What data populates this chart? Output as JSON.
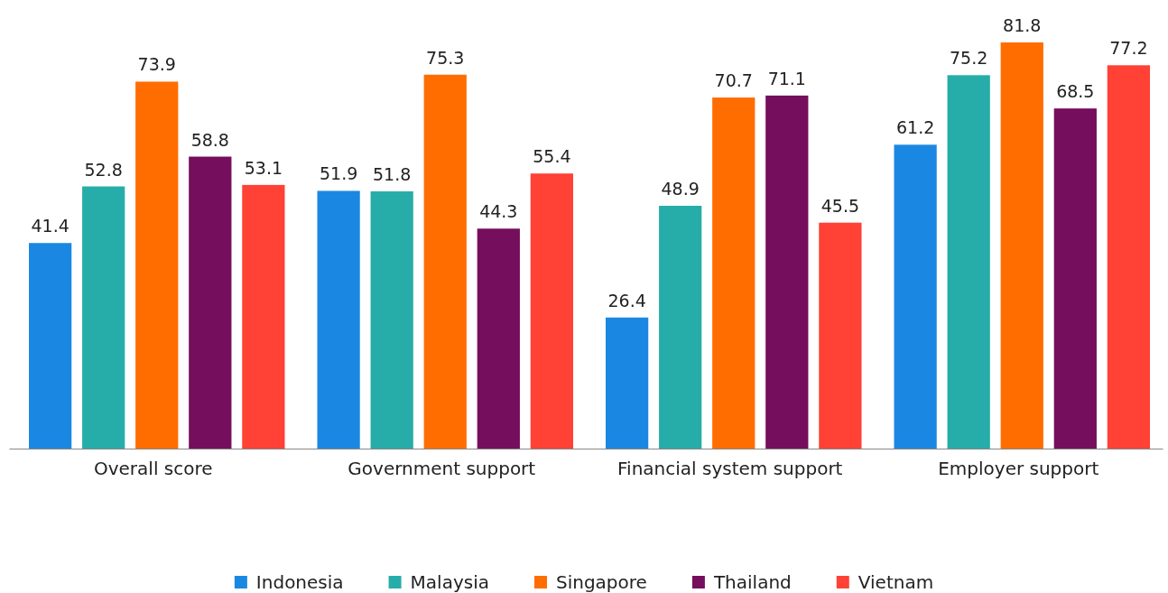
{
  "chart_data": {
    "type": "bar",
    "categories": [
      "Overall score",
      "Government support",
      "Financial system support",
      "Employer support"
    ],
    "series": [
      {
        "name": "Indonesia",
        "color": "#1a88e3",
        "values": [
          41.4,
          51.9,
          26.4,
          61.2
        ]
      },
      {
        "name": "Malaysia",
        "color": "#26ada9",
        "values": [
          52.8,
          51.8,
          48.9,
          75.2
        ]
      },
      {
        "name": "Singapore",
        "color": "#ff6d00",
        "values": [
          73.9,
          75.3,
          70.7,
          81.8
        ]
      },
      {
        "name": "Thailand",
        "color": "#750e5c",
        "values": [
          58.8,
          44.3,
          71.1,
          68.5
        ]
      },
      {
        "name": "Vietnam",
        "color": "#ff4136",
        "values": [
          53.1,
          55.4,
          45.5,
          77.2
        ]
      }
    ],
    "data_labels": true,
    "legend": "bottom",
    "grid": false
  }
}
